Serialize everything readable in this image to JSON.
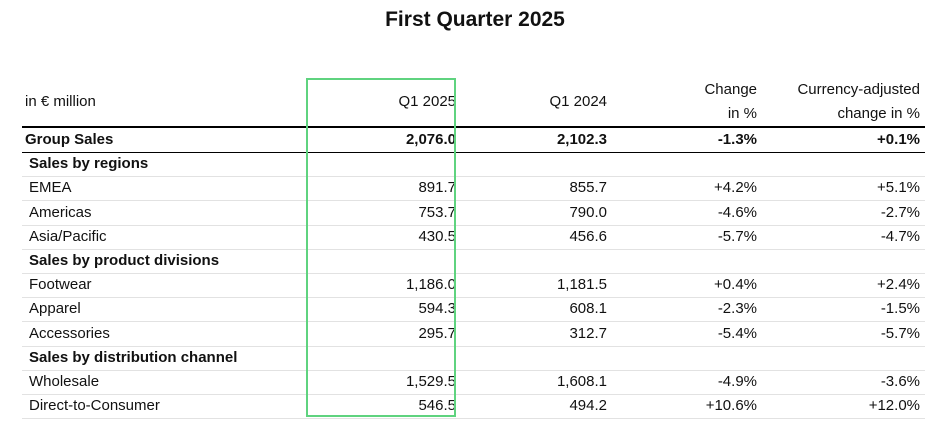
{
  "title": "First Quarter 2025",
  "table": {
    "header": [
      [
        "in € million"
      ],
      [
        "Q1 2025"
      ],
      [
        "Q1 2024"
      ],
      [
        "Change",
        "in %"
      ],
      [
        "Currency-adjusted",
        "change in %"
      ]
    ],
    "rows": [
      [
        "Group Sales",
        "2,076.0",
        "2,102.3",
        "-1.3%",
        "+0.1%"
      ],
      [
        "Sales by regions"
      ],
      [
        "EMEA",
        "891.7",
        "855.7",
        "+4.2%",
        "+5.1%"
      ],
      [
        "Americas",
        "753.7",
        "790.0",
        "-4.6%",
        "-2.7%"
      ],
      [
        "Asia/Pacific",
        "430.5",
        "456.6",
        "-5.7%",
        "-4.7%"
      ],
      [
        "Sales by product divisions"
      ],
      [
        "Footwear",
        "1,186.0",
        "1,181.5",
        "+0.4%",
        "+2.4%"
      ],
      [
        "Apparel",
        "594.3",
        "608.1",
        "-2.3%",
        "-1.5%"
      ],
      [
        "Accessories",
        "295.7",
        "312.7",
        "-5.4%",
        "-5.7%"
      ],
      [
        "Sales by distribution channel"
      ],
      [
        "Wholesale",
        "1,529.5",
        "1,608.1",
        "-4.9%",
        "-3.6%"
      ],
      [
        "Direct-to-Consumer",
        "546.5",
        "494.2",
        "+10.6%",
        "+12.0%"
      ]
    ]
  }
}
